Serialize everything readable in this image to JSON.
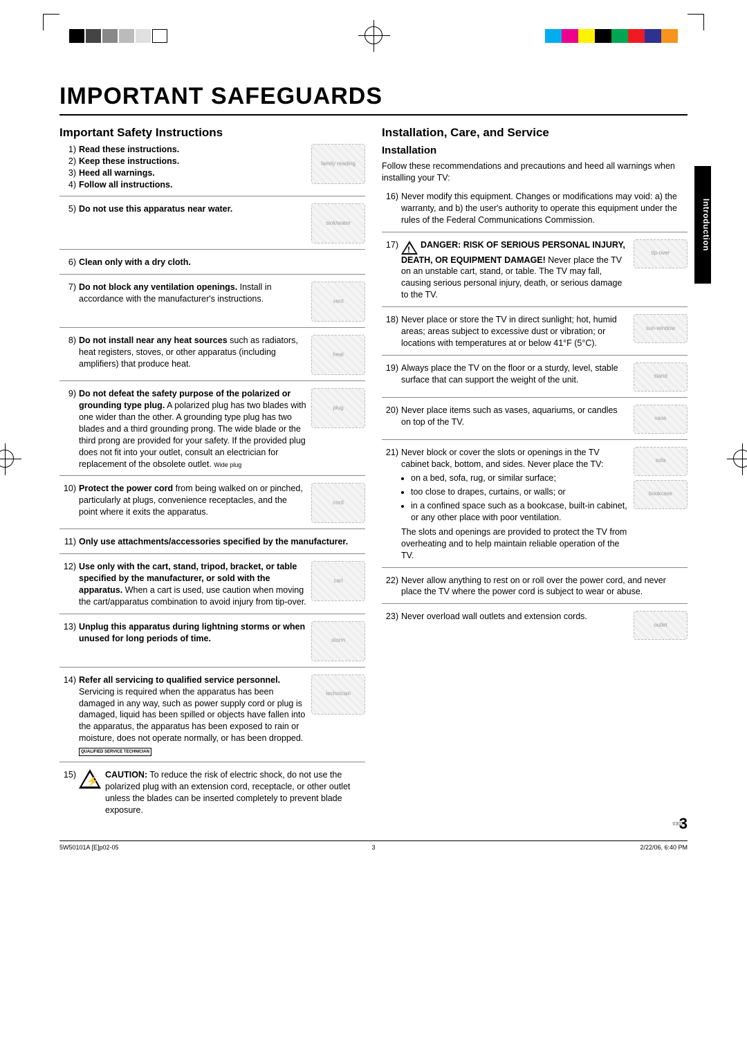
{
  "reg_colors_left": [
    "#000000",
    "#444444",
    "#888888",
    "#bbbbbb",
    "#e0e0e0",
    "#ffffff"
  ],
  "reg_colors_right": [
    "#00aeef",
    "#ec008c",
    "#fff200",
    "#000000",
    "#00a651",
    "#ed1c24",
    "#2e3192",
    "#f7941d"
  ],
  "main_title": "IMPORTANT SAFEGUARDS",
  "side_tab": "Introduction",
  "page_number": "3",
  "tiny_code": "0303",
  "footer": {
    "left": "5W50101A [E]p02-05",
    "mid": "3",
    "right": "2/22/06, 6:40 PM"
  },
  "left": {
    "title": "Important Safety Instructions",
    "items": [
      {
        "n": "1)",
        "bold": "Read these instructions."
      },
      {
        "n": "2)",
        "bold": "Keep these instructions."
      },
      {
        "n": "3)",
        "bold": "Heed all warnings."
      },
      {
        "n": "4)",
        "bold": "Follow all instructions."
      },
      {
        "n": "5)",
        "bold": "Do not use this apparatus near water.",
        "illus": "sink/water"
      },
      {
        "n": "6)",
        "bold": "Clean only with a dry cloth."
      },
      {
        "n": "7)",
        "bold": "Do not block any ventilation openings.",
        "rest": " Install in accordance with the manufacturer's instructions.",
        "illus": "vent"
      },
      {
        "n": "8)",
        "bold": "Do not install near any heat sources",
        "rest": " such as radiators, heat registers, stoves, or other apparatus (including amplifiers) that produce heat.",
        "illus": "heat"
      },
      {
        "n": "9)",
        "bold": "Do not defeat the safety purpose of the polarized or grounding type plug.",
        "rest": " A polarized plug has two blades with one wider than the other. A grounding type plug has two blades and a third grounding prong. The wide blade or the third prong are provided for your safety. If the provided plug does not fit into your outlet, consult an electrician for replacement of the obsolete outlet.",
        "note": "Wide plug",
        "illus": "plug"
      },
      {
        "n": "10)",
        "bold": "Protect the power cord",
        "rest": " from being walked on or pinched, particularly at plugs, convenience receptacles, and the point where it exits the apparatus.",
        "illus": "cord"
      },
      {
        "n": "11)",
        "bold": "Only use attachments/accessories specified by the manufacturer."
      },
      {
        "n": "12)",
        "bold": "Use only with the cart, stand, tripod, bracket, or table specified by the manufacturer, or sold with the apparatus.",
        "rest": " When a cart is used, use caution when moving the cart/apparatus combination to avoid injury from tip-over.",
        "illus": "cart"
      },
      {
        "n": "13)",
        "bold": "Unplug this apparatus during lightning storms or when unused for long periods of time.",
        "illus": "storm"
      },
      {
        "n": "14)",
        "bold": "Refer all servicing to qualified service personnel.",
        "rest": " Servicing is required when the apparatus has been damaged in any way, such as power supply cord or plug is damaged, liquid has been spilled or objects have fallen into the apparatus, the apparatus has been exposed to rain or moisture, does not operate normally, or has been dropped.",
        "illus": "technician",
        "badge": "QUALIFIED SERVICE TECHNICIAN"
      },
      {
        "n": "15)",
        "bold": "CAUTION:",
        "rest": " To reduce the risk of electric shock, do not use the polarized plug with an extension cord, receptacle, or other outlet unless the blades can be inserted completely to prevent blade exposure.",
        "shock": true
      }
    ]
  },
  "right": {
    "title": "Installation, Care, and Service",
    "subtitle": "Installation",
    "lead": "Follow these recommendations and precautions and heed all warnings when installing your TV:",
    "items": [
      {
        "n": "16)",
        "text": "Never modify this equipment. Changes or modifications may void: a) the warranty, and b) the user's authority to operate this equipment under the rules of the Federal Communications Commission."
      },
      {
        "n": "17)",
        "danger": true,
        "bold": "DANGER: RISK OF SERIOUS PERSONAL INJURY, DEATH, OR EQUIPMENT DAMAGE!",
        "rest": " Never place the TV on an unstable cart, stand, or table. The TV may fall, causing serious personal injury, death, or serious damage to the TV.",
        "illus": "tip-over"
      },
      {
        "n": "18)",
        "text": "Never place or store the TV in direct sunlight; hot, humid areas; areas subject to excessive dust or vibration; or locations with temperatures at or below 41°F (5°C).",
        "illus": "sun-window"
      },
      {
        "n": "19)",
        "text": "Always place the TV on the floor or a sturdy, level, stable surface that can support the weight of the unit.",
        "illus": "stand"
      },
      {
        "n": "20)",
        "text": "Never place items such as vases, aquariums, or candles on top of the TV.",
        "illus": "vase"
      },
      {
        "n": "21)",
        "text": "Never block or cover the slots or openings in the TV cabinet back, bottom, and sides. Never place the TV:",
        "bullets": [
          "on a bed, sofa, rug, or similar surface;",
          "too close to drapes, curtains, or walls; or",
          "in a confined space such as a bookcase, built-in cabinet, or any other place with poor ventilation."
        ],
        "tail": "The slots and openings are provided to protect the TV from overheating and to help maintain reliable operation of the TV.",
        "illus": "sofa",
        "illus2": "bookcase"
      },
      {
        "n": "22)",
        "text": "Never allow anything to rest on or roll over the power cord, and never place the TV where the power cord is subject to wear or abuse."
      },
      {
        "n": "23)",
        "text": "Never overload wall outlets and extension cords.",
        "illus": "outlet"
      }
    ]
  }
}
